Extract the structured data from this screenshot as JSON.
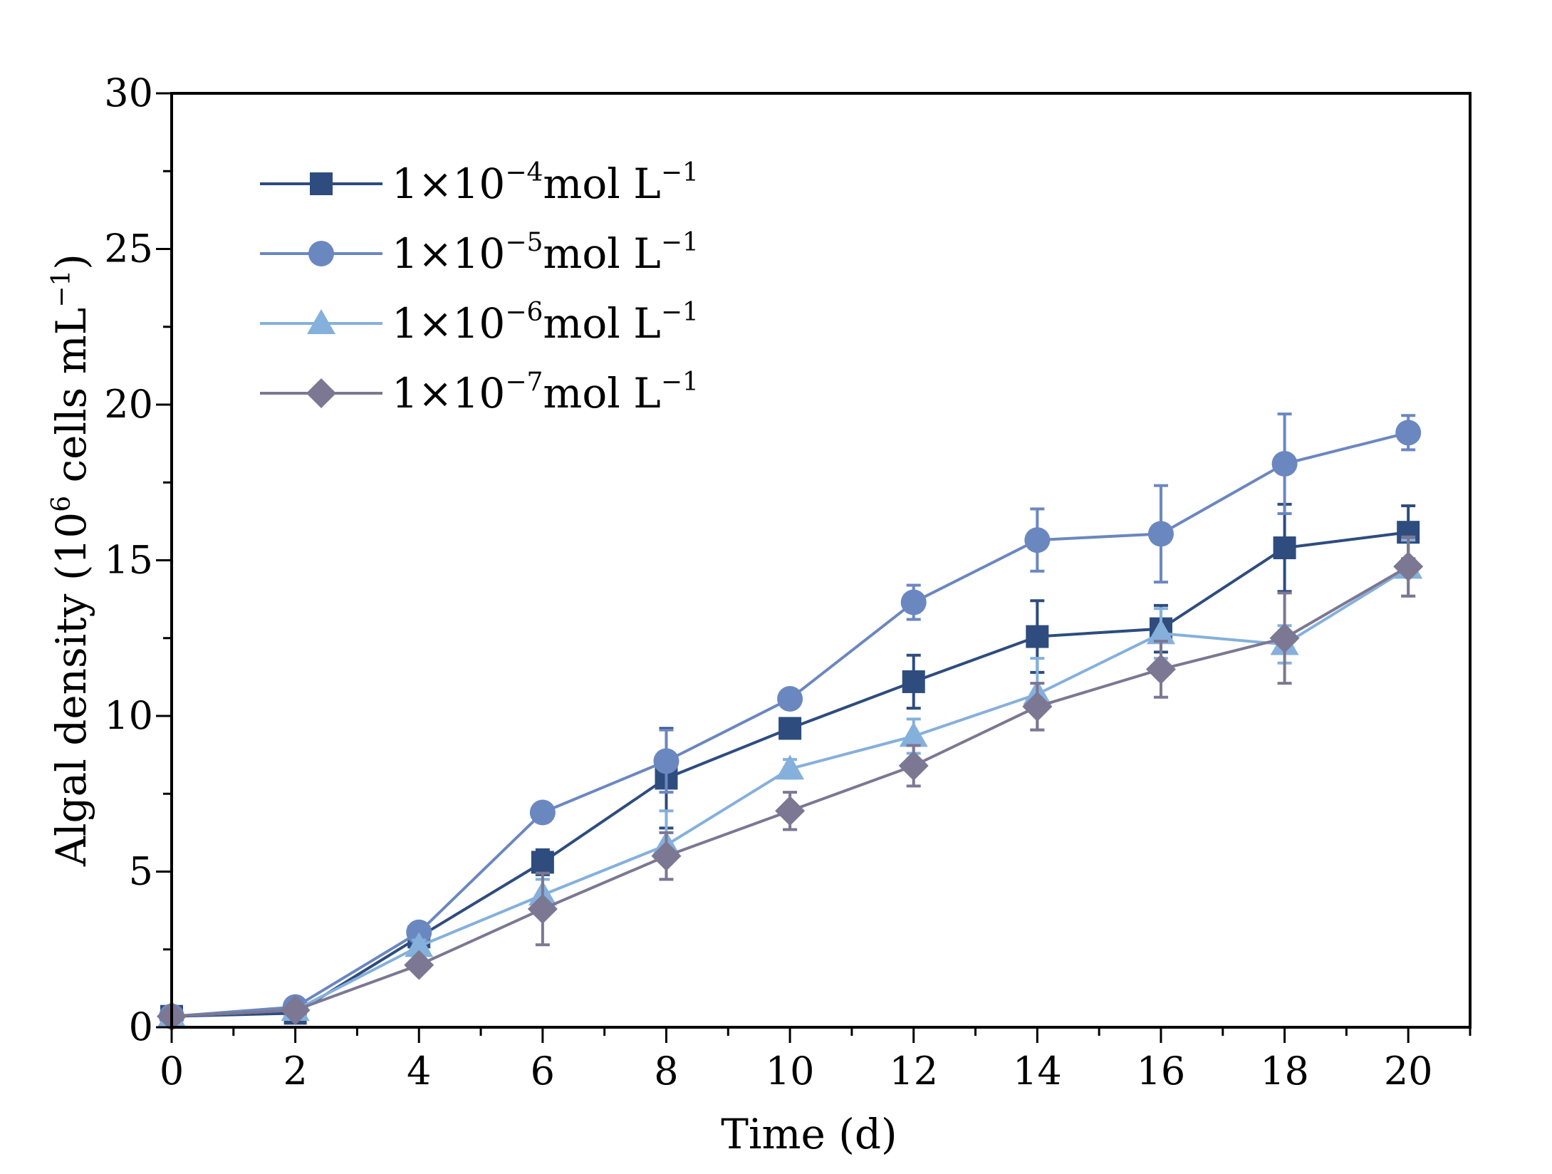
{
  "chart_data": {
    "type": "line",
    "title": "",
    "xlabel": "Time (d)",
    "ylabel": {
      "prefix": "Algal density (10",
      "exp": "6",
      "unit": " cells mL",
      "unit_exp": "−1",
      "suffix": ")"
    },
    "xlim": [
      0,
      21
    ],
    "ylim": [
      0,
      30
    ],
    "xticks": [
      0,
      2,
      4,
      6,
      8,
      10,
      12,
      14,
      16,
      18,
      20
    ],
    "yticks": [
      0,
      5,
      10,
      15,
      20,
      25,
      30
    ],
    "x": [
      0,
      2,
      4,
      6,
      8,
      10,
      12,
      14,
      16,
      18,
      20
    ],
    "legend_position": "top-left",
    "series": [
      {
        "name": "1×10−4mol L−1",
        "label_base": "1×10",
        "label_exp": "−4",
        "label_unit": "mol L",
        "label_unit_exp": "−1",
        "marker": "square",
        "color": "#2e4c7e",
        "values": [
          0.35,
          0.45,
          2.9,
          5.3,
          8.0,
          9.6,
          11.1,
          12.55,
          12.8,
          15.4,
          15.9
        ],
        "errors": [
          0.1,
          0.1,
          0.25,
          0.4,
          1.6,
          0.3,
          0.85,
          1.15,
          0.75,
          1.4,
          0.85
        ]
      },
      {
        "name": "1×10−5mol L−1",
        "label_base": "1×10",
        "label_exp": "−5",
        "label_unit": "mol L",
        "label_unit_exp": "−1",
        "marker": "circle",
        "color": "#6b87c0",
        "values": [
          0.35,
          0.65,
          3.05,
          6.9,
          8.55,
          10.55,
          13.65,
          15.65,
          15.85,
          18.1,
          19.1
        ],
        "errors": [
          0.1,
          0.1,
          0.2,
          0.25,
          1.0,
          0.25,
          0.55,
          1.0,
          1.55,
          1.6,
          0.55
        ]
      },
      {
        "name": "1×10−6mol L−1",
        "label_base": "1×10",
        "label_exp": "−6",
        "label_unit": "mol L",
        "label_unit_exp": "−1",
        "marker": "triangle",
        "color": "#85b0dc",
        "values": [
          0.35,
          0.55,
          2.6,
          4.25,
          5.85,
          8.3,
          9.35,
          10.7,
          12.65,
          12.3,
          14.75
        ],
        "errors": [
          0.1,
          0.1,
          0.2,
          0.5,
          1.1,
          0.3,
          0.55,
          1.15,
          0.8,
          0.6,
          0.9
        ]
      },
      {
        "name": "1×10−7mol L−1",
        "label_base": "1×10",
        "label_exp": "−7",
        "label_unit": "mol L",
        "label_unit_exp": "−1",
        "marker": "diamond",
        "color": "#7c7792",
        "values": [
          0.35,
          0.55,
          2.0,
          3.8,
          5.5,
          6.95,
          8.4,
          10.3,
          11.5,
          12.5,
          14.8
        ],
        "errors": [
          0.1,
          0.1,
          0.2,
          1.15,
          0.75,
          0.6,
          0.65,
          0.75,
          0.9,
          1.45,
          0.95
        ]
      }
    ]
  }
}
